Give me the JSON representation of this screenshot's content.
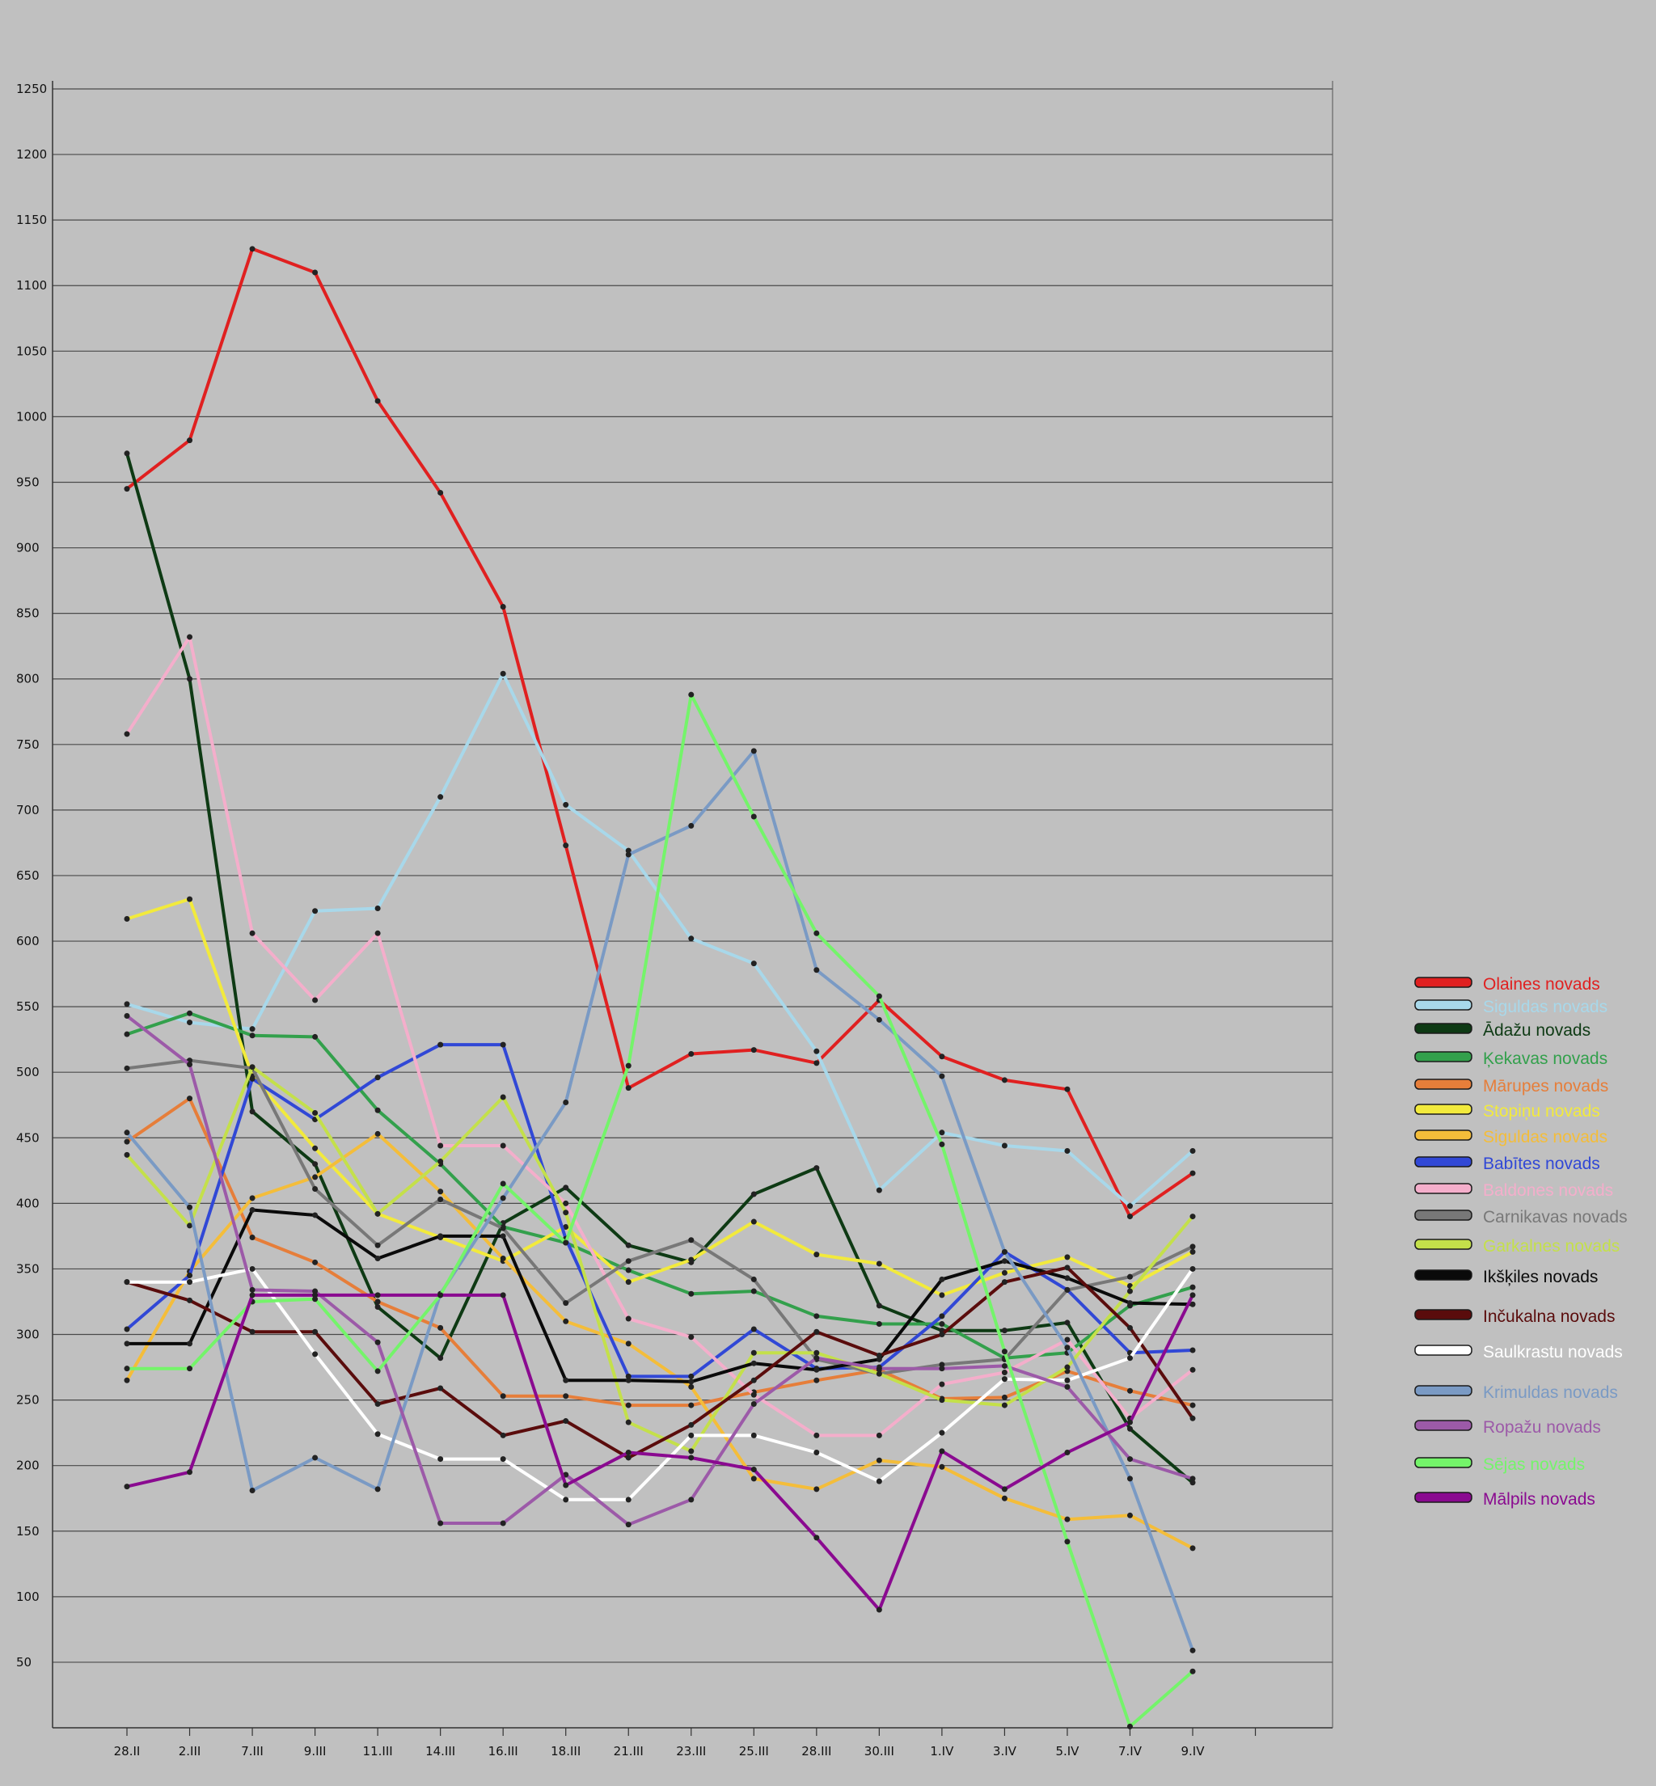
{
  "chart_data": {
    "type": "line",
    "title": "",
    "xlabel": "",
    "ylabel": "",
    "ylim": [
      0,
      1250
    ],
    "yticks": [
      50,
      100,
      150,
      200,
      250,
      300,
      350,
      400,
      450,
      500,
      550,
      600,
      650,
      700,
      750,
      800,
      850,
      900,
      950,
      1000,
      1050,
      1100,
      1150,
      1200,
      1250
    ],
    "grid": true,
    "legend": "right",
    "categories": [
      "28.II",
      "2.III",
      "7.III",
      "9.III",
      "11.III",
      "14.III",
      "16.III",
      "18.III",
      "21.III",
      "23.III",
      "25.III",
      "28.III",
      "30.III",
      "1.IV",
      "3.IV",
      "5.IV",
      "7.IV",
      "9.IV"
    ],
    "series": [
      {
        "name": "Olaines novads",
        "color": "#e02020",
        "values": [
          945,
          982,
          1128,
          1110,
          1012,
          942,
          855,
          673,
          488,
          514,
          517,
          507,
          555,
          512,
          494,
          487,
          390,
          423
        ]
      },
      {
        "name": "Siguldas novads",
        "color": "#a8d8ea",
        "values": [
          552,
          538,
          533,
          623,
          625,
          710,
          804,
          704,
          669,
          602,
          583,
          516,
          410,
          454,
          444,
          440,
          398,
          440
        ]
      },
      {
        "name": "Ādažu novads",
        "color": "#0e3a14",
        "values": [
          972,
          800,
          470,
          430,
          321,
          282,
          385,
          412,
          368,
          355,
          407,
          427,
          322,
          303,
          303,
          309,
          228,
          187
        ]
      },
      {
        "name": "Ķekavas novads",
        "color": "#33a04c",
        "values": [
          529,
          545,
          528,
          527,
          471,
          430,
          382,
          370,
          349,
          331,
          333,
          314,
          308,
          308,
          282,
          286,
          322,
          336
        ]
      },
      {
        "name": "Mārupes novads",
        "color": "#e67e3a",
        "values": [
          447,
          480,
          374,
          355,
          325,
          305,
          253,
          253,
          246,
          246,
          256,
          265,
          273,
          251,
          252,
          272,
          257,
          246
        ]
      },
      {
        "name": "Stopiņu novads",
        "color": "#f2ea3c",
        "values": [
          617,
          632,
          497,
          442,
          392,
          374,
          356,
          382,
          340,
          357,
          386,
          361,
          354,
          330,
          347,
          359,
          337,
          363
        ]
      },
      {
        "name": "Siguldas novads",
        "color": "#f4bd3a",
        "values": [
          265,
          348,
          404,
          420,
          453,
          409,
          358,
          310,
          293,
          260,
          190,
          182,
          204,
          199,
          175,
          159,
          162,
          137
        ]
      },
      {
        "name": "Babītes novads",
        "color": "#3148d6",
        "values": [
          304,
          345,
          495,
          464,
          496,
          521,
          521,
          373,
          268,
          268,
          304,
          274,
          275,
          314,
          363,
          334,
          286,
          288
        ]
      },
      {
        "name": "Baldones novads",
        "color": "#f4aecb",
        "values": [
          758,
          832,
          606,
          555,
          606,
          444,
          444,
          400,
          312,
          298,
          254,
          223,
          223,
          262,
          271,
          296,
          236,
          273
        ]
      },
      {
        "name": "Carnikavas novads",
        "color": "#787878",
        "values": [
          503,
          509,
          503,
          411,
          368,
          403,
          381,
          324,
          356,
          372,
          342,
          281,
          270,
          277,
          281,
          334,
          344,
          367
        ]
      },
      {
        "name": "Garkalnes novads",
        "color": "#c4e04a",
        "values": [
          437,
          383,
          504,
          469,
          392,
          432,
          481,
          393,
          233,
          211,
          286,
          286,
          270,
          250,
          246,
          275,
          333,
          390
        ]
      },
      {
        "name": "Ikšķiles novads",
        "color": "#0a0a0a",
        "values": [
          293,
          293,
          395,
          391,
          358,
          375,
          375,
          265,
          265,
          264,
          278,
          273,
          281,
          342,
          356,
          343,
          324,
          323
        ]
      },
      {
        "name": "Inčukalna novads",
        "color": "#5a0c0c",
        "values": [
          340,
          326,
          302,
          302,
          247,
          259,
          223,
          234,
          206,
          231,
          265,
          302,
          284,
          300,
          340,
          351,
          305,
          236
        ]
      },
      {
        "name": "Saulkrastu novads",
        "color": "#ffffff",
        "values": [
          340,
          340,
          350,
          285,
          224,
          205,
          205,
          174,
          174,
          223,
          223,
          210,
          188,
          225,
          266,
          265,
          282,
          350
        ]
      },
      {
        "name": "Krimuldas novads",
        "color": "#7a9ac4",
        "values": [
          454,
          397,
          181,
          206,
          182,
          331,
          404,
          477,
          666,
          688,
          745,
          578,
          540,
          497,
          363,
          290,
          190,
          59
        ]
      },
      {
        "name": "Ropažu novads",
        "color": "#9c5aa8",
        "values": [
          543,
          506,
          334,
          333,
          294,
          156,
          156,
          193,
          155,
          174,
          247,
          282,
          274,
          274,
          276,
          260,
          205,
          190
        ]
      },
      {
        "name": "Sējas novads",
        "color": "#74f46a",
        "values": [
          274,
          274,
          325,
          327,
          272,
          330,
          415,
          370,
          505,
          788,
          695,
          606,
          558,
          445,
          287,
          142,
          1,
          43
        ]
      },
      {
        "name": "Mālpils novads",
        "color": "#8a0a90",
        "values": [
          184,
          195,
          330,
          330,
          330,
          330,
          330,
          185,
          210,
          206,
          197,
          145,
          90,
          211,
          182,
          210,
          233,
          330
        ]
      }
    ]
  }
}
